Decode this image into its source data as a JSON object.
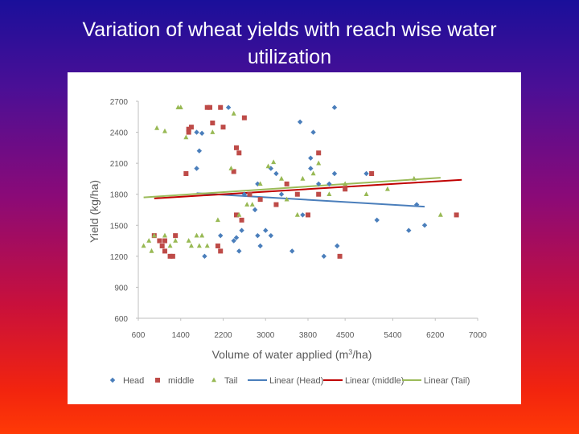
{
  "slide": {
    "title_line1": "Variation of wheat yields with reach wise water",
    "title_line2": "utilization"
  },
  "colors": {
    "head": "#4a7ebb",
    "middle": "#be4b48",
    "tail": "#98b954",
    "linear_head": "#4a7ebb",
    "linear_middle": "#c00000",
    "linear_tail": "#9bbb59"
  },
  "chart_data": {
    "type": "scatter",
    "title": "",
    "xlabel": "Volume of water applied (m3/ha)",
    "ylabel": "Yield (kg/ha)",
    "xlim": [
      600,
      7000
    ],
    "ylim": [
      600,
      2700
    ],
    "xticks": [
      600,
      1400,
      2200,
      3000,
      3800,
      4500,
      5400,
      6200,
      7000
    ],
    "yticks": [
      600,
      900,
      1200,
      1500,
      1800,
      2100,
      2400,
      2700
    ],
    "grid": false,
    "legend_position": "bottom",
    "series": [
      {
        "name": "Head",
        "marker": "diamond",
        "points": [
          [
            1700,
            2400
          ],
          [
            1750,
            2220
          ],
          [
            1800,
            2390
          ],
          [
            1700,
            2050
          ],
          [
            2300,
            2640
          ],
          [
            1850,
            1200
          ],
          [
            2150,
            1400
          ],
          [
            2400,
            1350
          ],
          [
            2450,
            1380
          ],
          [
            2500,
            1250
          ],
          [
            2550,
            1450
          ],
          [
            2600,
            1800
          ],
          [
            2800,
            1650
          ],
          [
            2850,
            1400
          ],
          [
            2900,
            1300
          ],
          [
            2850,
            1900
          ],
          [
            3000,
            1450
          ],
          [
            3100,
            1400
          ],
          [
            3100,
            2050
          ],
          [
            3200,
            2000
          ],
          [
            3300,
            1800
          ],
          [
            3500,
            1250
          ],
          [
            3650,
            2500
          ],
          [
            3700,
            1600
          ],
          [
            3850,
            2050
          ],
          [
            3850,
            2150
          ],
          [
            3900,
            2400
          ],
          [
            4000,
            1900
          ],
          [
            4100,
            1200
          ],
          [
            4200,
            1900
          ],
          [
            4300,
            2640
          ],
          [
            4300,
            2000
          ],
          [
            4350,
            1300
          ],
          [
            4900,
            2000
          ],
          [
            5100,
            1550
          ],
          [
            5700,
            1450
          ],
          [
            5850,
            1700
          ],
          [
            6000,
            1500
          ]
        ]
      },
      {
        "name": "middle",
        "marker": "square",
        "points": [
          [
            900,
            1400
          ],
          [
            1000,
            1350
          ],
          [
            1050,
            1300
          ],
          [
            1100,
            1350
          ],
          [
            1100,
            1250
          ],
          [
            1200,
            1200
          ],
          [
            1250,
            1200
          ],
          [
            1300,
            1400
          ],
          [
            1500,
            2000
          ],
          [
            1550,
            2430
          ],
          [
            1550,
            2400
          ],
          [
            1600,
            2450
          ],
          [
            1900,
            2640
          ],
          [
            1950,
            2640
          ],
          [
            2000,
            2490
          ],
          [
            2100,
            1300
          ],
          [
            2150,
            2640
          ],
          [
            2150,
            1250
          ],
          [
            2200,
            2450
          ],
          [
            2400,
            2020
          ],
          [
            2450,
            1600
          ],
          [
            2450,
            2250
          ],
          [
            2500,
            2200
          ],
          [
            2550,
            1550
          ],
          [
            2600,
            2540
          ],
          [
            2700,
            1800
          ],
          [
            2900,
            1750
          ],
          [
            3200,
            1700
          ],
          [
            3400,
            1900
          ],
          [
            3600,
            1800
          ],
          [
            3800,
            1600
          ],
          [
            4000,
            2200
          ],
          [
            4000,
            1800
          ],
          [
            4400,
            1200
          ],
          [
            4500,
            1850
          ],
          [
            5000,
            2000
          ],
          [
            6600,
            1600
          ]
        ]
      },
      {
        "name": "Tail",
        "marker": "triangle",
        "points": [
          [
            700,
            1300
          ],
          [
            800,
            1350
          ],
          [
            850,
            1250
          ],
          [
            900,
            1400
          ],
          [
            950,
            2440
          ],
          [
            1100,
            1400
          ],
          [
            1100,
            2410
          ],
          [
            1200,
            1300
          ],
          [
            1300,
            1350
          ],
          [
            1350,
            2640
          ],
          [
            1400,
            2640
          ],
          [
            1500,
            2350
          ],
          [
            1550,
            1350
          ],
          [
            1600,
            1300
          ],
          [
            1700,
            1400
          ],
          [
            1750,
            1300
          ],
          [
            1800,
            1400
          ],
          [
            1900,
            1300
          ],
          [
            2000,
            2400
          ],
          [
            2100,
            1550
          ],
          [
            2350,
            2050
          ],
          [
            2400,
            2580
          ],
          [
            2500,
            1600
          ],
          [
            2650,
            1700
          ],
          [
            2750,
            1700
          ],
          [
            2900,
            1900
          ],
          [
            3050,
            2070
          ],
          [
            3150,
            2110
          ],
          [
            3300,
            1950
          ],
          [
            3400,
            1750
          ],
          [
            3600,
            1600
          ],
          [
            3700,
            1950
          ],
          [
            3900,
            2000
          ],
          [
            4000,
            2100
          ],
          [
            4200,
            1800
          ],
          [
            4500,
            1900
          ],
          [
            4900,
            1800
          ],
          [
            5300,
            1850
          ],
          [
            5800,
            1950
          ],
          [
            6300,
            1600
          ]
        ]
      },
      {
        "name": "Linear (Head)",
        "type": "line",
        "points": [
          [
            1700,
            1810
          ],
          [
            6000,
            1680
          ]
        ]
      },
      {
        "name": "Linear (middle)",
        "type": "line",
        "points": [
          [
            900,
            1760
          ],
          [
            6700,
            1940
          ]
        ]
      },
      {
        "name": "Linear (Tail)",
        "type": "line",
        "points": [
          [
            700,
            1770
          ],
          [
            6300,
            1960
          ]
        ]
      }
    ]
  }
}
